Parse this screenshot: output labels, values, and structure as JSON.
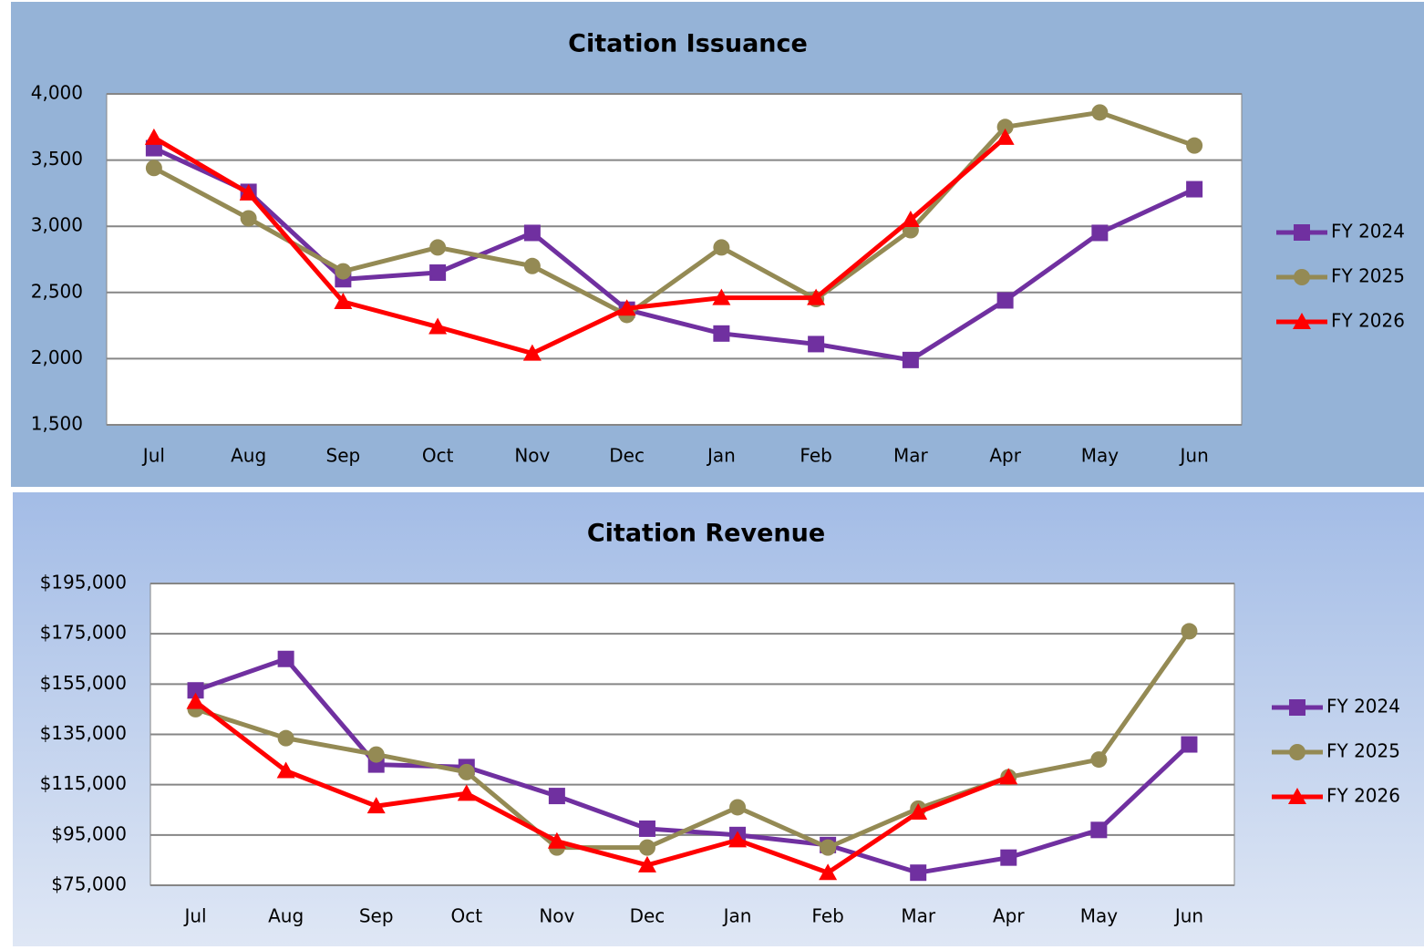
{
  "chart_data": [
    {
      "type": "line",
      "title": "Citation Issuance",
      "categories": [
        "Jul",
        "Aug",
        "Sep",
        "Oct",
        "Nov",
        "Dec",
        "Jan",
        "Feb",
        "Mar",
        "Apr",
        "May",
        "Jun"
      ],
      "series": [
        {
          "name": "FY 2024",
          "color": "#7030a0",
          "marker": "square",
          "values": [
            3590,
            3260,
            2600,
            2650,
            2950,
            2370,
            2190,
            2110,
            1990,
            2440,
            2950,
            3280
          ]
        },
        {
          "name": "FY 2025",
          "color": "#948a54",
          "marker": "circle",
          "values": [
            3440,
            3060,
            2660,
            2840,
            2700,
            2330,
            2840,
            2450,
            2970,
            3750,
            3860,
            3610
          ]
        },
        {
          "name": "FY 2026",
          "color": "#ff0000",
          "marker": "triangle",
          "values": [
            3670,
            3250,
            2430,
            2240,
            2040,
            2380,
            2460,
            2460,
            3050,
            3670,
            null,
            null
          ]
        }
      ],
      "ylim": [
        1500,
        4000
      ],
      "yticks": [
        {
          "value": 1500,
          "label": "1,500"
        },
        {
          "value": 2000,
          "label": "2,000"
        },
        {
          "value": 2500,
          "label": "2,500"
        },
        {
          "value": 3000,
          "label": "3,000"
        },
        {
          "value": 3500,
          "label": "3,500"
        },
        {
          "value": 4000,
          "label": "4,000"
        }
      ],
      "grid": true,
      "legend": "right"
    },
    {
      "type": "line",
      "title": "Citation Revenue",
      "categories": [
        "Jul",
        "Aug",
        "Sep",
        "Oct",
        "Nov",
        "Dec",
        "Jan",
        "Feb",
        "Mar",
        "Apr",
        "May",
        "Jun"
      ],
      "series": [
        {
          "name": "FY 2024",
          "color": "#7030a0",
          "marker": "square",
          "values": [
            152500,
            165000,
            123000,
            122000,
            110500,
            97500,
            95000,
            91000,
            80000,
            86000,
            97000,
            131000
          ]
        },
        {
          "name": "FY 2025",
          "color": "#948a54",
          "marker": "circle",
          "values": [
            145000,
            133500,
            127000,
            120000,
            90000,
            90000,
            106000,
            90000,
            105500,
            118000,
            125000,
            176000
          ]
        },
        {
          "name": "FY 2026",
          "color": "#ff0000",
          "marker": "triangle",
          "values": [
            148000,
            120500,
            106500,
            111500,
            92500,
            83000,
            93000,
            80000,
            104000,
            118000,
            null,
            null
          ]
        }
      ],
      "ylim": [
        75000,
        195000
      ],
      "yticks": [
        {
          "value": 75000,
          "label": "$75,000"
        },
        {
          "value": 95000,
          "label": "$95,000"
        },
        {
          "value": 115000,
          "label": "$115,000"
        },
        {
          "value": 135000,
          "label": "$135,000"
        },
        {
          "value": 155000,
          "label": "$155,000"
        },
        {
          "value": 175000,
          "label": "$175,000"
        },
        {
          "value": 195000,
          "label": "$195,000"
        }
      ],
      "grid": true,
      "legend": "right"
    }
  ]
}
